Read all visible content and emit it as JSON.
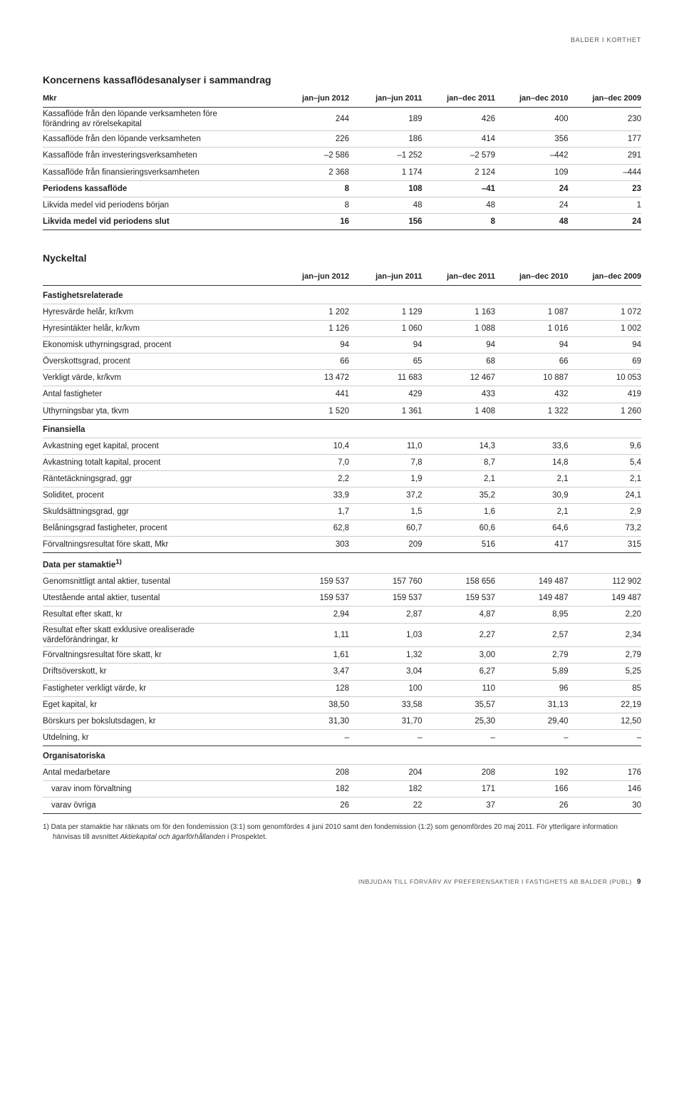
{
  "breadcrumb": "BALDER I KORTHET",
  "table1": {
    "title": "Koncernens kassaflödesanalyser i sammandrag",
    "columns": [
      "Mkr",
      "jan–jun 2012",
      "jan–jun 2011",
      "jan–dec 2011",
      "jan–dec 2010",
      "jan–dec 2009"
    ],
    "rows": [
      {
        "label": "Kassaflöde från den löpande verksamheten före förändring av rörelsekapital",
        "v": [
          "244",
          "189",
          "426",
          "400",
          "230"
        ],
        "multi": true
      },
      {
        "label": "Kassaflöde från den löpande verksamheten",
        "v": [
          "226",
          "186",
          "414",
          "356",
          "177"
        ]
      },
      {
        "label": "Kassaflöde från investeringsverksamheten",
        "v": [
          "–2 586",
          "–1 252",
          "–2 579",
          "–442",
          "291"
        ]
      },
      {
        "label": "Kassaflöde från finansieringsverksamheten",
        "v": [
          "2 368",
          "1 174",
          "2 124",
          "109",
          "–444"
        ]
      },
      {
        "label": "Periodens kassaflöde",
        "v": [
          "8",
          "108",
          "–41",
          "24",
          "23"
        ],
        "bold": true
      },
      {
        "label": "Likvida medel vid periodens början",
        "v": [
          "8",
          "48",
          "48",
          "24",
          "1"
        ]
      },
      {
        "label": "Likvida medel vid periodens slut",
        "v": [
          "16",
          "156",
          "8",
          "48",
          "24"
        ],
        "bold": true,
        "last": true
      }
    ]
  },
  "table2": {
    "title": "Nyckeltal",
    "columns": [
      "",
      "jan–jun 2012",
      "jan–jun 2011",
      "jan–dec 2011",
      "jan–dec 2010",
      "jan–dec 2009"
    ],
    "groups": [
      {
        "head": "Fastighetsrelaterade",
        "rows": [
          {
            "label": "Hyresvärde helår, kr/kvm",
            "v": [
              "1 202",
              "1 129",
              "1 163",
              "1 087",
              "1 072"
            ]
          },
          {
            "label": "Hyresintäkter helår, kr/kvm",
            "v": [
              "1 126",
              "1 060",
              "1 088",
              "1 016",
              "1 002"
            ]
          },
          {
            "label": "Ekonomisk uthyrningsgrad, procent",
            "v": [
              "94",
              "94",
              "94",
              "94",
              "94"
            ]
          },
          {
            "label": "Överskottsgrad, procent",
            "v": [
              "66",
              "65",
              "68",
              "66",
              "69"
            ]
          },
          {
            "label": "Verkligt värde, kr/kvm",
            "v": [
              "13 472",
              "11 683",
              "12 467",
              "10 887",
              "10 053"
            ]
          },
          {
            "label": "Antal fastigheter",
            "v": [
              "441",
              "429",
              "433",
              "432",
              "419"
            ]
          },
          {
            "label": "Uthyrningsbar yta, tkvm",
            "v": [
              "1 520",
              "1 361",
              "1 408",
              "1 322",
              "1 260"
            ],
            "last": true
          }
        ]
      },
      {
        "head": "Finansiella",
        "rows": [
          {
            "label": "Avkastning eget kapital, procent",
            "v": [
              "10,4",
              "11,0",
              "14,3",
              "33,6",
              "9,6"
            ]
          },
          {
            "label": "Avkastning totalt kapital, procent",
            "v": [
              "7,0",
              "7,8",
              "8,7",
              "14,8",
              "5,4"
            ]
          },
          {
            "label": "Räntetäckningsgrad, ggr",
            "v": [
              "2,2",
              "1,9",
              "2,1",
              "2,1",
              "2,1"
            ]
          },
          {
            "label": "Soliditet, procent",
            "v": [
              "33,9",
              "37,2",
              "35,2",
              "30,9",
              "24,1"
            ]
          },
          {
            "label": "Skuldsättningsgrad, ggr",
            "v": [
              "1,7",
              "1,5",
              "1,6",
              "2,1",
              "2,9"
            ]
          },
          {
            "label": "Belåningsgrad fastigheter, procent",
            "v": [
              "62,8",
              "60,7",
              "60,6",
              "64,6",
              "73,2"
            ]
          },
          {
            "label": "Förvaltningsresultat före skatt, Mkr",
            "v": [
              "303",
              "209",
              "516",
              "417",
              "315"
            ],
            "last": true
          }
        ]
      },
      {
        "head": "Data per stamaktie<sup>1)</sup>",
        "rows": [
          {
            "label": "Genomsnittligt antal aktier, tusental",
            "v": [
              "159 537",
              "157 760",
              "158 656",
              "149 487",
              "112 902"
            ]
          },
          {
            "label": "Utestående antal aktier, tusental",
            "v": [
              "159 537",
              "159 537",
              "159 537",
              "149 487",
              "149 487"
            ]
          },
          {
            "label": "Resultat efter skatt, kr",
            "v": [
              "2,94",
              "2,87",
              "4,87",
              "8,95",
              "2,20"
            ]
          },
          {
            "label": "Resultat efter skatt exklusive orealiserade värdeförändringar, kr",
            "v": [
              "1,11",
              "1,03",
              "2,27",
              "2,57",
              "2,34"
            ],
            "multi": true
          },
          {
            "label": "Förvaltningsresultat före skatt, kr",
            "v": [
              "1,61",
              "1,32",
              "3,00",
              "2,79",
              "2,79"
            ]
          },
          {
            "label": "Driftsöverskott, kr",
            "v": [
              "3,47",
              "3,04",
              "6,27",
              "5,89",
              "5,25"
            ]
          },
          {
            "label": "Fastigheter verkligt värde, kr",
            "v": [
              "128",
              "100",
              "110",
              "96",
              "85"
            ]
          },
          {
            "label": "Eget kapital, kr",
            "v": [
              "38,50",
              "33,58",
              "35,57",
              "31,13",
              "22,19"
            ]
          },
          {
            "label": "Börskurs per bokslutsdagen, kr",
            "v": [
              "31,30",
              "31,70",
              "25,30",
              "29,40",
              "12,50"
            ]
          },
          {
            "label": "Utdelning, kr",
            "v": [
              "–",
              "–",
              "–",
              "–",
              "–"
            ],
            "last": true
          }
        ]
      },
      {
        "head": "Organisatoriska",
        "rows": [
          {
            "label": "Antal medarbetare",
            "v": [
              "208",
              "204",
              "208",
              "192",
              "176"
            ]
          },
          {
            "label": "varav inom förvaltning",
            "v": [
              "182",
              "182",
              "171",
              "166",
              "146"
            ],
            "indent": true
          },
          {
            "label": "varav övriga",
            "v": [
              "26",
              "22",
              "37",
              "26",
              "30"
            ],
            "indent": true,
            "last": true
          }
        ]
      }
    ],
    "footnote": "1) Data per stamaktie har räknats om för den fondemission (3:1) som genomfördes 4 juni 2010 samt den fondemission (1:2) som genomfördes 20 maj 2011. För ytterligare information hänvisas till avsnittet <span class=\"em\">Aktiekapital och ägarförhållanden</span> i Prospektet."
  },
  "footer": {
    "text": "INBJUDAN TILL FÖRVÄRV AV PREFERENSAKTIER I  FASTIGHETS AB BALDER (PUBL)",
    "page": "9"
  }
}
